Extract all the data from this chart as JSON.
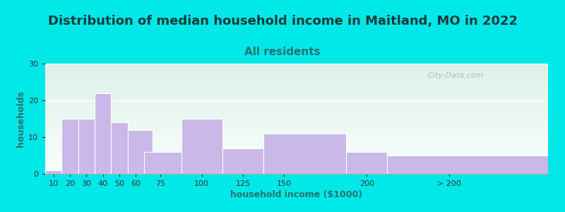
{
  "title": "Distribution of median household income in Maitland, MO in 2022",
  "subtitle": "All residents",
  "xlabel": "household income ($1000)",
  "ylabel": "households",
  "background_color": "#00e8e8",
  "plot_bg_top": "#dff0e8",
  "plot_bg_bottom": "#f8fffc",
  "bar_color": "#c9b8e8",
  "bar_edge_color": "#ffffff",
  "title_fontsize": 13,
  "subtitle_fontsize": 11,
  "title_color": "#1a3a3a",
  "subtitle_color": "#2a7070",
  "ylabel_color": "#2a7070",
  "xlabel_color": "#2a7070",
  "ylim": [
    0,
    30
  ],
  "yticks": [
    0,
    10,
    20,
    30
  ],
  "xlim": [
    5,
    310
  ],
  "lefts": [
    5,
    15,
    25,
    35,
    45,
    55,
    65,
    87.5,
    112.5,
    137.5,
    187.5,
    212.5
  ],
  "widths": [
    10,
    10,
    10,
    10,
    10,
    15,
    25,
    25,
    25,
    50,
    25,
    100
  ],
  "heights": [
    1,
    15,
    15,
    22,
    14,
    12,
    6,
    15,
    7,
    11,
    6,
    5
  ],
  "xtick_positions": [
    10,
    20,
    30,
    40,
    50,
    60,
    75,
    100,
    125,
    150,
    200,
    250
  ],
  "xtick_labels": [
    "10",
    "20",
    "30",
    "40",
    "50",
    "60",
    "75",
    "100",
    "125",
    "150",
    "200",
    "> 200"
  ],
  "watermark": "City-Data.com"
}
